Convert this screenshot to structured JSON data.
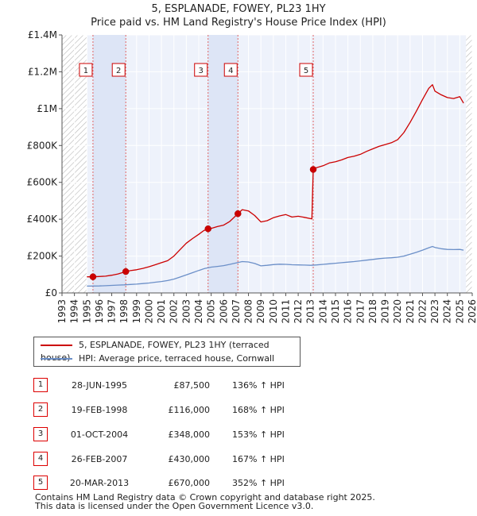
{
  "chart_data": {
    "type": "line",
    "title": "5, ESPLANADE, FOWEY, PL23 1HY",
    "subtitle": "Price paid vs. HM Land Registry's House Price Index (HPI)",
    "xlim": [
      1993,
      2026
    ],
    "ylim": [
      0,
      1400000
    ],
    "yticks": [
      0,
      200000,
      400000,
      600000,
      800000,
      1000000,
      1200000,
      1400000
    ],
    "ytick_labels": [
      "£0",
      "£200K",
      "£400K",
      "£600K",
      "£800K",
      "£1M",
      "£1.2M",
      "£1.4M"
    ],
    "xticks": [
      "1993",
      "1994",
      "1995",
      "1996",
      "1997",
      "1998",
      "1999",
      "2000",
      "2001",
      "2002",
      "2003",
      "2004",
      "2005",
      "2006",
      "2007",
      "2008",
      "2009",
      "2010",
      "2011",
      "2012",
      "2013",
      "2014",
      "2015",
      "2016",
      "2017",
      "2018",
      "2019",
      "2020",
      "2021",
      "2022",
      "2023",
      "2024",
      "2025",
      "2026"
    ],
    "hatched_ranges": [
      [
        1993,
        1995.0
      ],
      [
        2025.5,
        2026
      ]
    ],
    "shaded_ranges": [
      [
        1995.49,
        1998.13
      ],
      [
        2004.75,
        2007.15
      ]
    ],
    "series": [
      {
        "name": "5, ESPLANADE, FOWEY, PL23 1HY (terraced house)",
        "color": "#cc0000",
        "points": [
          [
            1995.0,
            87500
          ],
          [
            1995.49,
            87500
          ],
          [
            1996.0,
            89000
          ],
          [
            1996.5,
            91000
          ],
          [
            1997.0,
            96000
          ],
          [
            1997.5,
            103000
          ],
          [
            1998.13,
            116000
          ],
          [
            1998.5,
            121000
          ],
          [
            1999.0,
            126000
          ],
          [
            1999.5,
            133000
          ],
          [
            2000.0,
            142000
          ],
          [
            2000.5,
            153000
          ],
          [
            2001.0,
            164000
          ],
          [
            2001.5,
            175000
          ],
          [
            2002.0,
            200000
          ],
          [
            2002.5,
            235000
          ],
          [
            2003.0,
            270000
          ],
          [
            2003.5,
            295000
          ],
          [
            2004.0,
            318000
          ],
          [
            2004.4,
            338000
          ],
          [
            2004.75,
            348000
          ],
          [
            2005.0,
            350000
          ],
          [
            2005.5,
            360000
          ],
          [
            2006.0,
            368000
          ],
          [
            2006.5,
            388000
          ],
          [
            2007.15,
            430000
          ],
          [
            2007.5,
            452000
          ],
          [
            2008.0,
            445000
          ],
          [
            2008.5,
            420000
          ],
          [
            2009.0,
            385000
          ],
          [
            2009.5,
            392000
          ],
          [
            2010.0,
            408000
          ],
          [
            2010.5,
            418000
          ],
          [
            2011.0,
            425000
          ],
          [
            2011.5,
            412000
          ],
          [
            2012.0,
            416000
          ],
          [
            2012.5,
            410000
          ],
          [
            2013.1,
            402000
          ],
          [
            2013.21,
            670000
          ],
          [
            2013.5,
            680000
          ],
          [
            2014.0,
            690000
          ],
          [
            2014.5,
            705000
          ],
          [
            2015.0,
            712000
          ],
          [
            2015.5,
            722000
          ],
          [
            2016.0,
            735000
          ],
          [
            2016.5,
            742000
          ],
          [
            2017.0,
            752000
          ],
          [
            2017.5,
            768000
          ],
          [
            2018.0,
            782000
          ],
          [
            2018.5,
            795000
          ],
          [
            2019.0,
            805000
          ],
          [
            2019.5,
            815000
          ],
          [
            2020.0,
            832000
          ],
          [
            2020.5,
            870000
          ],
          [
            2021.0,
            925000
          ],
          [
            2021.5,
            985000
          ],
          [
            2022.0,
            1050000
          ],
          [
            2022.5,
            1110000
          ],
          [
            2022.8,
            1130000
          ],
          [
            2023.0,
            1095000
          ],
          [
            2023.5,
            1075000
          ],
          [
            2024.0,
            1060000
          ],
          [
            2024.5,
            1055000
          ],
          [
            2025.0,
            1065000
          ],
          [
            2025.3,
            1030000
          ]
        ]
      },
      {
        "name": "HPI: Average price, terraced house, Cornwall",
        "color": "#6b8fc8",
        "points": [
          [
            1995.0,
            37000
          ],
          [
            1995.5,
            37500
          ],
          [
            1996.0,
            38000
          ],
          [
            1996.5,
            39000
          ],
          [
            1997.0,
            41000
          ],
          [
            1997.5,
            42500
          ],
          [
            1998.0,
            44000
          ],
          [
            1998.5,
            46000
          ],
          [
            1999.0,
            48000
          ],
          [
            1999.5,
            51000
          ],
          [
            2000.0,
            54000
          ],
          [
            2000.5,
            58000
          ],
          [
            2001.0,
            62000
          ],
          [
            2001.5,
            67000
          ],
          [
            2002.0,
            75000
          ],
          [
            2002.5,
            86000
          ],
          [
            2003.0,
            98000
          ],
          [
            2003.5,
            110000
          ],
          [
            2004.0,
            122000
          ],
          [
            2004.5,
            133000
          ],
          [
            2005.0,
            140000
          ],
          [
            2005.5,
            144000
          ],
          [
            2006.0,
            148000
          ],
          [
            2006.5,
            155000
          ],
          [
            2007.0,
            163000
          ],
          [
            2007.5,
            170000
          ],
          [
            2008.0,
            168000
          ],
          [
            2008.5,
            160000
          ],
          [
            2009.0,
            147000
          ],
          [
            2009.5,
            150000
          ],
          [
            2010.0,
            154000
          ],
          [
            2010.5,
            156000
          ],
          [
            2011.0,
            155000
          ],
          [
            2011.5,
            153000
          ],
          [
            2012.0,
            152000
          ],
          [
            2012.5,
            151000
          ],
          [
            2013.0,
            150000
          ],
          [
            2013.5,
            152000
          ],
          [
            2014.0,
            155000
          ],
          [
            2014.5,
            158000
          ],
          [
            2015.0,
            161000
          ],
          [
            2015.5,
            164000
          ],
          [
            2016.0,
            167000
          ],
          [
            2016.5,
            170000
          ],
          [
            2017.0,
            174000
          ],
          [
            2017.5,
            178000
          ],
          [
            2018.0,
            182000
          ],
          [
            2018.5,
            186000
          ],
          [
            2019.0,
            189000
          ],
          [
            2019.5,
            191000
          ],
          [
            2020.0,
            194000
          ],
          [
            2020.5,
            200000
          ],
          [
            2021.0,
            210000
          ],
          [
            2021.5,
            220000
          ],
          [
            2022.0,
            232000
          ],
          [
            2022.5,
            245000
          ],
          [
            2022.8,
            252000
          ],
          [
            2023.0,
            247000
          ],
          [
            2023.5,
            240000
          ],
          [
            2024.0,
            236000
          ],
          [
            2024.5,
            235000
          ],
          [
            2025.0,
            236000
          ],
          [
            2025.3,
            232000
          ]
        ]
      }
    ],
    "sales": [
      {
        "id": "1",
        "year": 1995.49,
        "price": 87500
      },
      {
        "id": "2",
        "year": 1998.13,
        "price": 116000
      },
      {
        "id": "3",
        "year": 2004.75,
        "price": 348000
      },
      {
        "id": "4",
        "year": 2007.15,
        "price": 430000
      },
      {
        "id": "5",
        "year": 2013.21,
        "price": 670000
      }
    ]
  },
  "legend": {
    "property_label": "5, ESPLANADE, FOWEY, PL23 1HY (terraced house)",
    "hpi_label": "HPI: Average price, terraced house, Cornwall"
  },
  "transactions": [
    {
      "num": "1",
      "date": "28-JUN-1995",
      "price": "£87,500",
      "hpi": "136% ↑ HPI"
    },
    {
      "num": "2",
      "date": "19-FEB-1998",
      "price": "£116,000",
      "hpi": "168% ↑ HPI"
    },
    {
      "num": "3",
      "date": "01-OCT-2004",
      "price": "£348,000",
      "hpi": "153% ↑ HPI"
    },
    {
      "num": "4",
      "date": "26-FEB-2007",
      "price": "£430,000",
      "hpi": "167% ↑ HPI"
    },
    {
      "num": "5",
      "date": "20-MAR-2013",
      "price": "£670,000",
      "hpi": "352% ↑ HPI"
    }
  ],
  "footer": {
    "line1": "Contains HM Land Registry data © Crown copyright and database right 2025.",
    "line2": "This data is licensed under the Open Government Licence v3.0."
  }
}
